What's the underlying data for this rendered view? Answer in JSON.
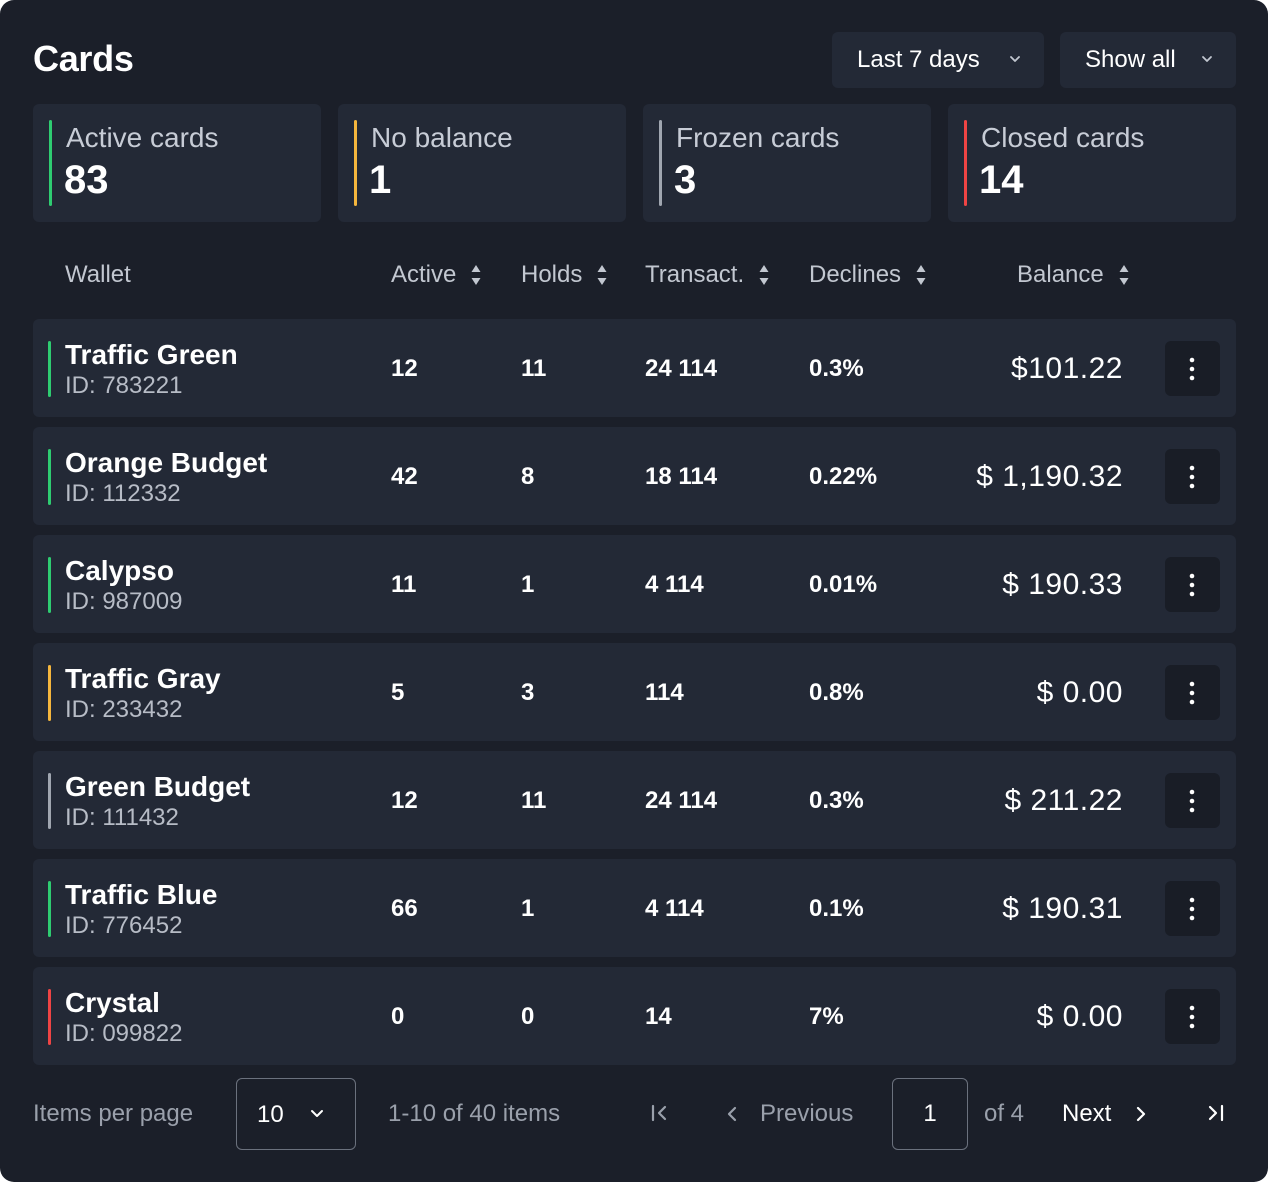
{
  "header": {
    "title": "Cards",
    "range_label": "Last 7 days",
    "filter_label": "Show all"
  },
  "stats": [
    {
      "label": "Active cards",
      "value": "83",
      "color": "#2ecc71"
    },
    {
      "label": "No balance",
      "value": "1",
      "color": "#f5b63d"
    },
    {
      "label": "Frozen cards",
      "value": "3",
      "color": "#a0a6b0"
    },
    {
      "label": "Closed cards",
      "value": "14",
      "color": "#ef4444"
    }
  ],
  "table": {
    "columns": [
      "Wallet",
      "Active",
      "Holds",
      "Transact.",
      "Declines",
      "Balance"
    ],
    "rows": [
      {
        "name": "Traffic Green",
        "id": "ID: 783221",
        "active": "12",
        "holds": "11",
        "transact": "24 114",
        "declines": "0.3%",
        "balance": "$101.22",
        "color": "#2ecc71"
      },
      {
        "name": "Orange Budget",
        "id": "ID: 112332",
        "active": "42",
        "holds": "8",
        "transact": "18 114",
        "declines": "0.22%",
        "balance": "$ 1,190.32",
        "color": "#2ecc71"
      },
      {
        "name": "Calypso",
        "id": "ID: 987009",
        "active": "11",
        "holds": "1",
        "transact": "4 114",
        "declines": "0.01%",
        "balance": "$ 190.33",
        "color": "#2ecc71"
      },
      {
        "name": "Traffic Gray",
        "id": "ID: 233432",
        "active": "5",
        "holds": "3",
        "transact": "114",
        "declines": "0.8%",
        "balance": "$ 0.00",
        "color": "#f5b63d"
      },
      {
        "name": "Green Budget",
        "id": "ID: 111432",
        "active": "12",
        "holds": "11",
        "transact": "24 114",
        "declines": "0.3%",
        "balance": "$ 211.22",
        "color": "#a0a6b0"
      },
      {
        "name": "Traffic Blue",
        "id": "ID: 776452",
        "active": "66",
        "holds": "1",
        "transact": "4 114",
        "declines": "0.1%",
        "balance": "$ 190.31",
        "color": "#2ecc71"
      },
      {
        "name": "Crystal",
        "id": "ID: 099822",
        "active": "0",
        "holds": "0",
        "transact": "14",
        "declines": "7%",
        "balance": "$ 0.00",
        "color": "#ef4444"
      }
    ]
  },
  "pagination": {
    "items_per_page_label": "Items per page",
    "items_per_page_value": "10",
    "range_text": "1-10 of 40 items",
    "previous_label": "Previous",
    "current_page": "1",
    "of_text": "of 4",
    "next_label": "Next"
  }
}
